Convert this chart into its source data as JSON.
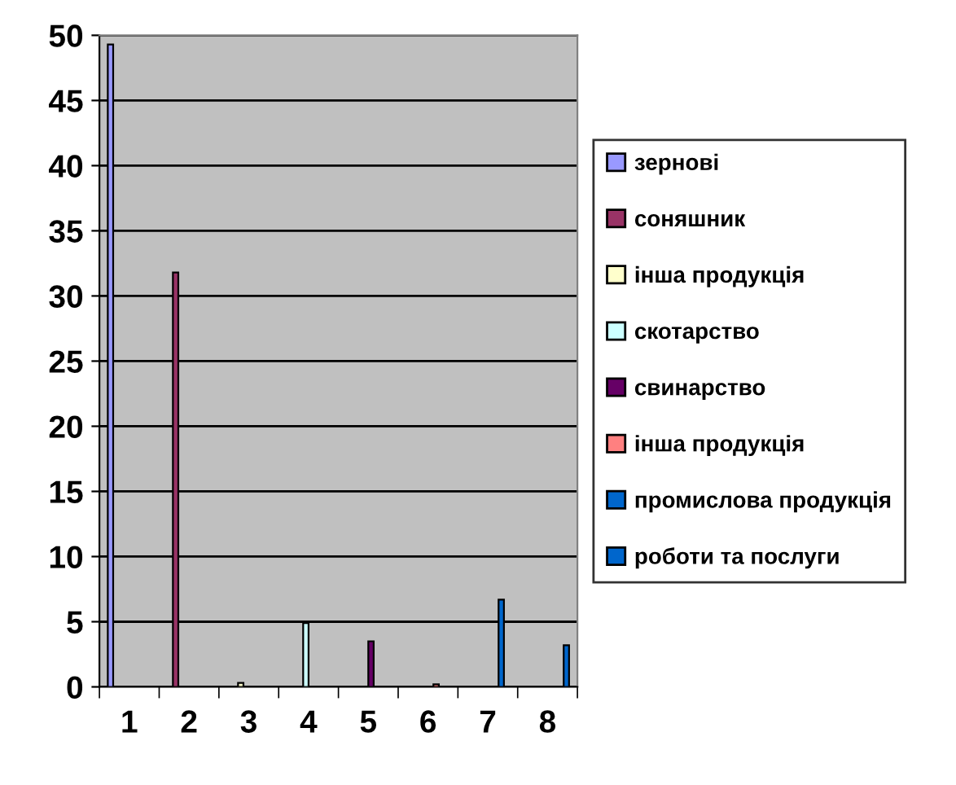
{
  "chart_data": {
    "type": "bar",
    "categories": [
      "1",
      "2",
      "3",
      "4",
      "5",
      "6",
      "7",
      "8"
    ],
    "series": [
      {
        "name": "зернові",
        "color": "#9999ff",
        "values": [
          49.3,
          null,
          null,
          null,
          null,
          null,
          null,
          null
        ]
      },
      {
        "name": "соняшник",
        "color": "#993366",
        "values": [
          null,
          31.8,
          null,
          null,
          null,
          null,
          null,
          null
        ]
      },
      {
        "name": "інша продукція",
        "color": "#ffffcc",
        "values": [
          null,
          null,
          0.3,
          null,
          null,
          null,
          null,
          null
        ]
      },
      {
        "name": "скотарство",
        "color": "#ccffff",
        "values": [
          null,
          null,
          null,
          4.9,
          null,
          null,
          null,
          null
        ]
      },
      {
        "name": "свинарство",
        "color": "#660066",
        "values": [
          null,
          null,
          null,
          null,
          3.5,
          null,
          null,
          null
        ]
      },
      {
        "name": "інша продукція",
        "color": "#ff8080",
        "values": [
          null,
          null,
          null,
          null,
          null,
          0.2,
          null,
          null
        ]
      },
      {
        "name": "промислова продукція",
        "color": "#0066cc",
        "values": [
          null,
          null,
          null,
          null,
          null,
          null,
          6.7,
          null
        ]
      },
      {
        "name": "роботи та послуги",
        "color": "#0066cc",
        "values": [
          null,
          null,
          null,
          null,
          null,
          null,
          null,
          3.2
        ]
      }
    ],
    "ylim": [
      0,
      50
    ],
    "yticks": [
      0,
      5,
      10,
      15,
      20,
      25,
      30,
      35,
      40,
      45,
      50
    ],
    "grid": "y",
    "legend": "right"
  }
}
